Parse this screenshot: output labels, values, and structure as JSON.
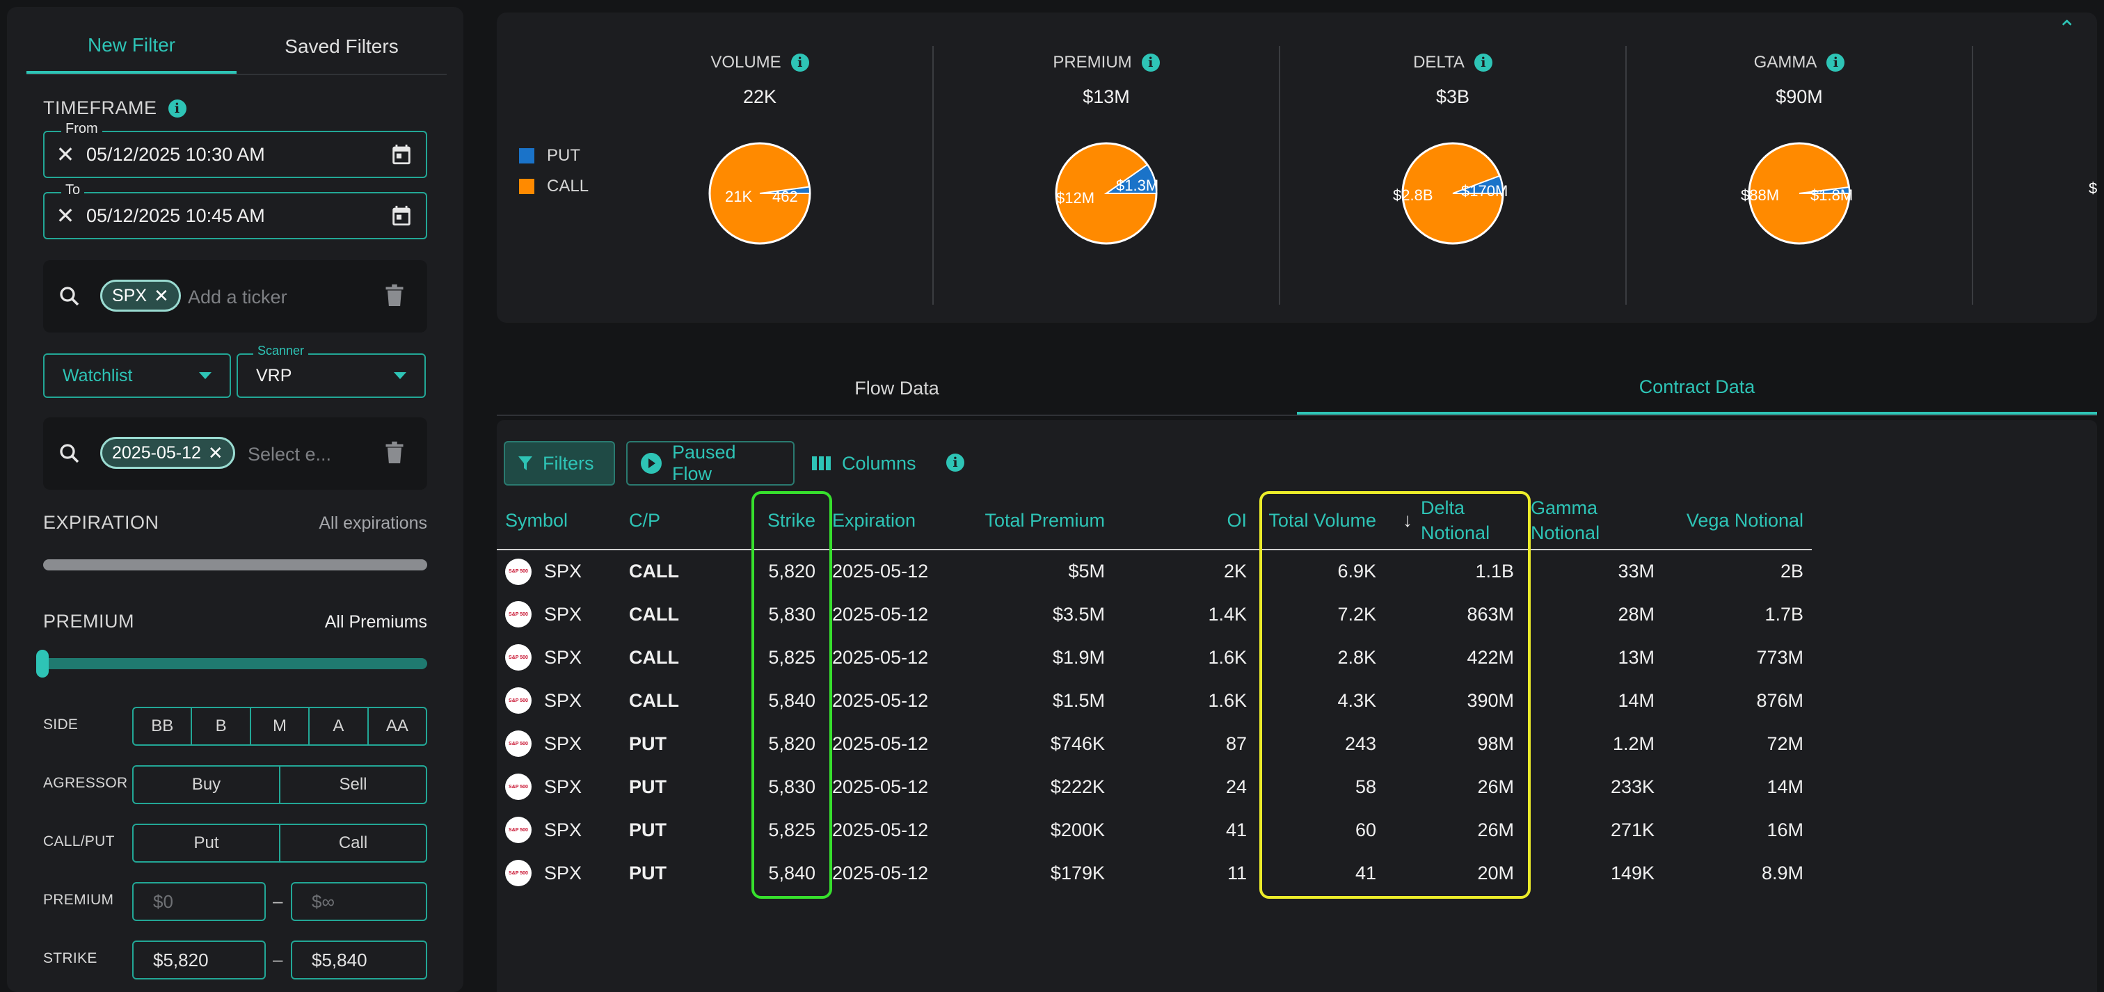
{
  "sidebar": {
    "tabs": [
      "New Filter",
      "Saved Filters"
    ],
    "timeframe_label": "TIMEFRAME",
    "from_label": "From",
    "from_value": "05/12/2025 10:30 AM",
    "to_label": "To",
    "to_value": "05/12/2025 10:45 AM",
    "ticker_chip": "SPX",
    "ticker_placeholder": "Add a ticker",
    "watchlist_label": "Watchlist",
    "scanner_label": "Scanner",
    "scanner_value": "VRP",
    "expiry_chip": "2025-05-12",
    "expiry_placeholder": "Select e...",
    "expiration_label": "EXPIRATION",
    "expiration_value": "All expirations",
    "premium_label": "PREMIUM",
    "premium_value": "All Premiums",
    "side_label": "SIDE",
    "side_options": [
      "BB",
      "B",
      "M",
      "A",
      "AA"
    ],
    "agressor_label": "AGRESSOR",
    "agressor_options": [
      "Buy",
      "Sell"
    ],
    "callput_label": "CALL/PUT",
    "callput_options": [
      "Put",
      "Call"
    ],
    "premium_row_label": "PREMIUM",
    "premium_min_placeholder": "$0",
    "premium_max_placeholder": "$∞",
    "strike_label": "STRIKE",
    "strike_min": "$5,820",
    "strike_max": "$5,840",
    "dash": "–"
  },
  "summary": {
    "legend": [
      {
        "label": "PUT",
        "color": "#1a73c9"
      },
      {
        "label": "CALL",
        "color": "#ff8a00"
      }
    ],
    "metrics": [
      {
        "title": "VOLUME",
        "total": "22K",
        "call_label": "21K",
        "put_label": "462",
        "put_fraction": 0.021
      },
      {
        "title": "PREMIUM",
        "total": "$13M",
        "call_label": "$12M",
        "put_label": "$1.3M",
        "put_fraction": 0.097
      },
      {
        "title": "DELTA",
        "total": "$3B",
        "call_label": "$2.8B",
        "put_label": "$170M",
        "put_fraction": 0.057
      },
      {
        "title": "GAMMA",
        "total": "$90M",
        "call_label": "$88M",
        "put_label": "$1.8M",
        "put_fraction": 0.02
      }
    ],
    "cut_label": "$"
  },
  "view_tabs": [
    "Flow Data",
    "Contract Data"
  ],
  "toolbar": {
    "filters": "Filters",
    "paused": "Paused Flow",
    "columns": "Columns"
  },
  "table": {
    "headers": [
      "Symbol",
      "C/P",
      "Strike",
      "Expiration",
      "Total Premium",
      "OI",
      "Total Volume",
      "Delta Notional",
      "Gamma Notional",
      "Vega Notional"
    ],
    "logo_text": "S&P 500",
    "rows": [
      [
        "SPX",
        "CALL",
        "5,820",
        "2025-05-12",
        "$5M",
        "2K",
        "6.9K",
        "1.1B",
        "33M",
        "2B"
      ],
      [
        "SPX",
        "CALL",
        "5,830",
        "2025-05-12",
        "$3.5M",
        "1.4K",
        "7.2K",
        "863M",
        "28M",
        "1.7B"
      ],
      [
        "SPX",
        "CALL",
        "5,825",
        "2025-05-12",
        "$1.9M",
        "1.6K",
        "2.8K",
        "422M",
        "13M",
        "773M"
      ],
      [
        "SPX",
        "CALL",
        "5,840",
        "2025-05-12",
        "$1.5M",
        "1.6K",
        "4.3K",
        "390M",
        "14M",
        "876M"
      ],
      [
        "SPX",
        "PUT",
        "5,820",
        "2025-05-12",
        "$746K",
        "87",
        "243",
        "98M",
        "1.2M",
        "72M"
      ],
      [
        "SPX",
        "PUT",
        "5,830",
        "2025-05-12",
        "$222K",
        "24",
        "58",
        "26M",
        "233K",
        "14M"
      ],
      [
        "SPX",
        "PUT",
        "5,825",
        "2025-05-12",
        "$200K",
        "41",
        "60",
        "26M",
        "271K",
        "16M"
      ],
      [
        "SPX",
        "PUT",
        "5,840",
        "2025-05-12",
        "$179K",
        "11",
        "41",
        "20M",
        "149K",
        "8.9M"
      ]
    ]
  }
}
